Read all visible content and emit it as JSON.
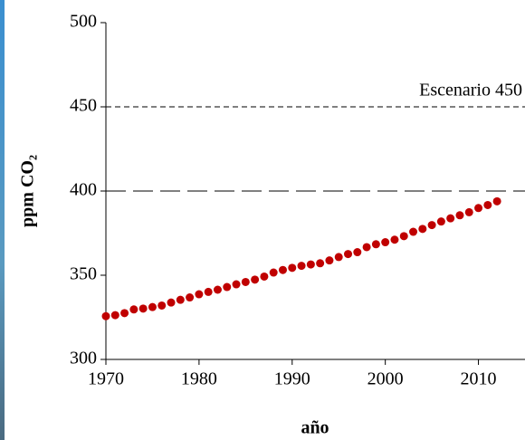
{
  "chart_data": {
    "type": "scatter",
    "x": [
      1970,
      1971,
      1972,
      1973,
      1974,
      1975,
      1976,
      1977,
      1978,
      1979,
      1980,
      1981,
      1982,
      1983,
      1984,
      1985,
      1986,
      1987,
      1988,
      1989,
      1990,
      1991,
      1992,
      1993,
      1994,
      1995,
      1996,
      1997,
      1998,
      1999,
      2000,
      2001,
      2002,
      2003,
      2004,
      2005,
      2006,
      2007,
      2008,
      2009,
      2010,
      2011,
      2012
    ],
    "values": [
      325.7,
      326.3,
      327.5,
      329.7,
      330.2,
      331.1,
      332.0,
      333.8,
      335.4,
      336.8,
      338.7,
      340.1,
      341.4,
      343.0,
      344.6,
      346.0,
      347.4,
      349.2,
      351.6,
      353.1,
      354.4,
      355.6,
      356.4,
      357.1,
      358.8,
      360.8,
      362.6,
      363.7,
      366.7,
      368.4,
      369.6,
      371.1,
      373.2,
      375.8,
      377.5,
      379.8,
      381.9,
      383.8,
      385.6,
      387.4,
      389.9,
      391.7,
      393.9
    ],
    "color": "#c00000",
    "xlabel": "año",
    "ylabel": "ppm CO₂",
    "xlim": [
      1970,
      2015
    ],
    "xticks": [
      1970,
      1980,
      1990,
      2000,
      2010
    ],
    "ylim": [
      300,
      500
    ],
    "yticks": [
      300,
      350,
      400,
      450,
      500
    ],
    "reference_lines": [
      {
        "value": 450,
        "label": "Escenario 450",
        "dash": "short"
      },
      {
        "value": 400,
        "dash": "long"
      }
    ]
  }
}
